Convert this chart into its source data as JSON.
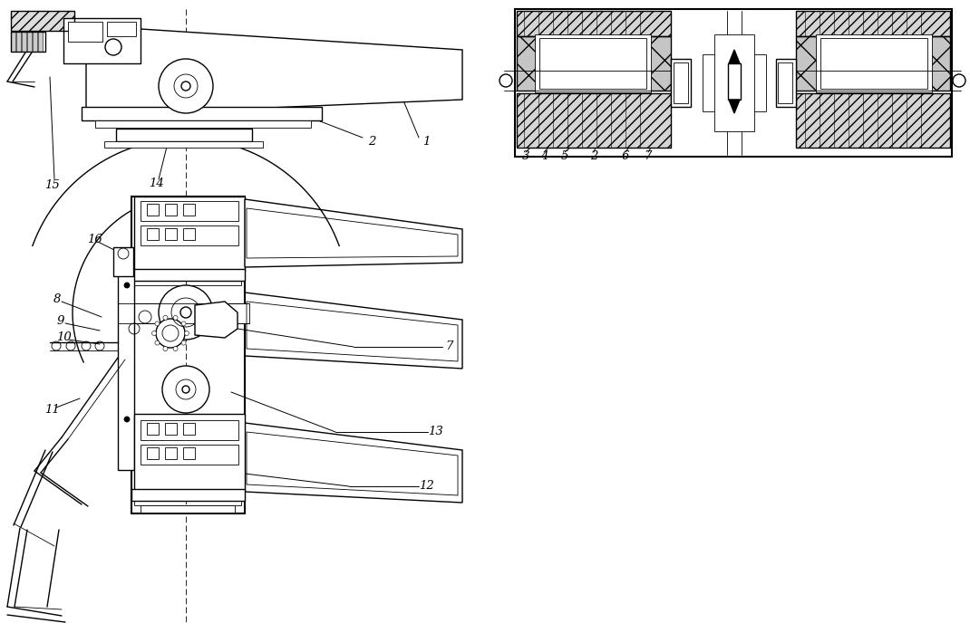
{
  "figsize": [
    10.7,
    6.99
  ],
  "dpi": 100,
  "bg_color": "#ffffff",
  "line_color": "#000000"
}
